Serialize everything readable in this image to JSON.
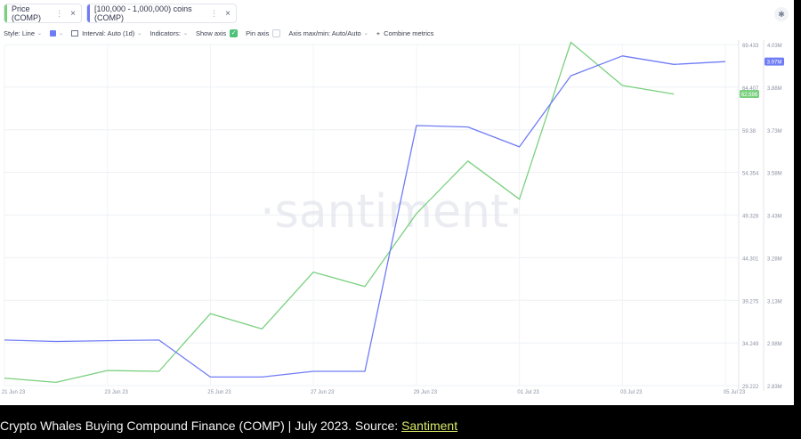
{
  "tabs": [
    {
      "label": "Price (COMP)",
      "color": "#7ad07f"
    },
    {
      "label": "[100,000 - 1,000,000) coins (COMP)",
      "color": "#6f7cf5"
    }
  ],
  "toolbar": {
    "style": "Style: Line",
    "interval": "Interval: Auto (1d)",
    "indicators": "Indicators:",
    "show_axis": "Show axis",
    "pin_axis": "Pin axis",
    "axis_minmax": "Axis max/min: Auto/Auto",
    "combine": "Combine metrics"
  },
  "watermark": "·santiment·",
  "caption": {
    "text": "Crypto Whales Buying Compound Finance (COMP) | July 2023. Source: ",
    "link": "Santiment"
  },
  "chart_data": {
    "type": "line",
    "x": [
      "21 Jun 23",
      "22 Jun 23",
      "23 Jun 23",
      "24 Jun 23",
      "25 Jun 23",
      "26 Jun 23",
      "27 Jun 23",
      "28 Jun 23",
      "29 Jun 23",
      "30 Jun 23",
      "01 Jul 23",
      "02 Jul 23",
      "03 Jul 23",
      "04 Jul 23",
      "05 Jul 23"
    ],
    "xticks": [
      "21 Jun 23",
      "23 Jun 23",
      "25 Jun 23",
      "27 Jun 23",
      "29 Jun 23",
      "01 Jul 23",
      "03 Jul 23",
      "05 Jul 23"
    ],
    "series": [
      {
        "name": "Price (COMP)",
        "color": "#7ad07f",
        "axis": "left",
        "values": [
          30.1,
          29.6,
          31.0,
          30.9,
          37.7,
          35.9,
          42.6,
          40.9,
          49.5,
          55.7,
          51.2,
          69.7,
          64.6,
          63.6,
          null
        ],
        "last_label": "62.596"
      },
      {
        "name": "[100,000 - 1,000,000) coins (COMP)",
        "color": "#6f7cf5",
        "axis": "right",
        "values": [
          2.99,
          2.985,
          2.988,
          2.99,
          2.86,
          2.86,
          2.88,
          2.88,
          3.745,
          3.74,
          3.67,
          3.92,
          3.99,
          3.96,
          3.97
        ],
        "last_label": "3.97M"
      }
    ],
    "left_axis": {
      "ticks": [
        "69.433",
        "64.407",
        "59.38",
        "54.354",
        "49.328",
        "44.301",
        "39.275",
        "34.249",
        "29.222"
      ],
      "ylim": [
        29.222,
        69.433
      ]
    },
    "right_axis": {
      "ticks": [
        "4.03M",
        "3.88M",
        "3.73M",
        "3.58M",
        "3.43M",
        "3.28M",
        "3.13M",
        "2.98M",
        "2.83M"
      ],
      "ylim": [
        2.83,
        4.03
      ]
    },
    "grid": true
  }
}
